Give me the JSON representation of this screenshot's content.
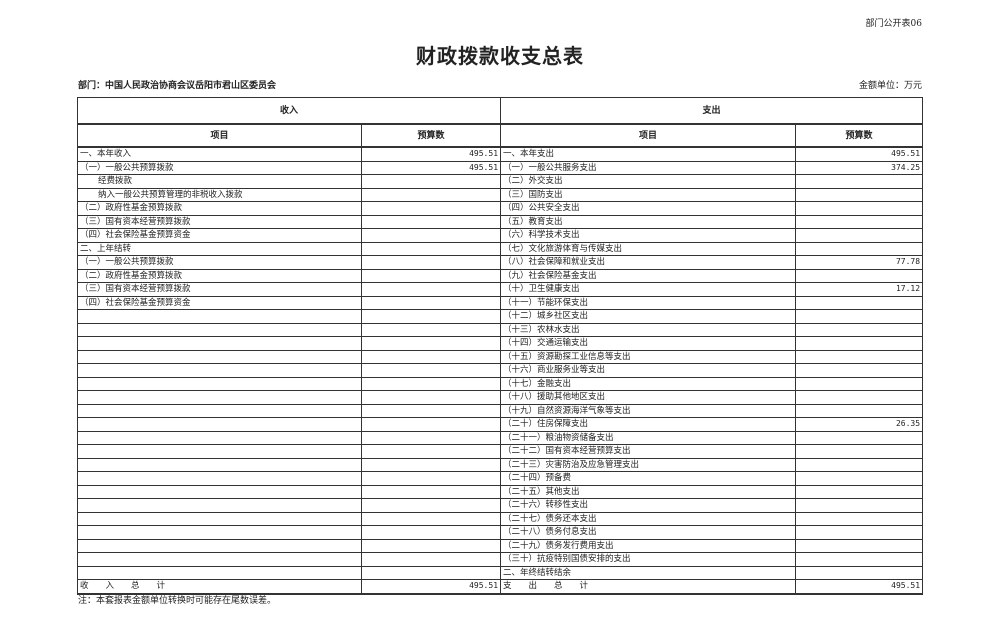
{
  "header": {
    "form_code": "部门公开表06",
    "title": "财政拨款收支总表",
    "department": "部门：中国人民政治协商会议岳阳市君山区委员会",
    "unit": "金额单位：万元"
  },
  "table": {
    "income_header": "收入",
    "expense_header": "支出",
    "col_item": "项目",
    "col_amount": "预算数",
    "income_rows": [
      {
        "label": "一、本年收入",
        "value": "495.51"
      },
      {
        "label": "（一）一般公共预算拨款",
        "value": "495.51"
      },
      {
        "label": "经费拨款",
        "value": "",
        "indent": true
      },
      {
        "label": "纳入一般公共预算管理的非税收入拨款",
        "value": "",
        "indent": true
      },
      {
        "label": "（二）政府性基金预算拨款",
        "value": ""
      },
      {
        "label": "（三）国有资本经营预算拨款",
        "value": ""
      },
      {
        "label": "（四）社会保险基金预算资金",
        "value": ""
      },
      {
        "label": "二、上年结转",
        "value": ""
      },
      {
        "label": "（一）一般公共预算拨款",
        "value": ""
      },
      {
        "label": "（二）政府性基金预算拨款",
        "value": ""
      },
      {
        "label": "（三）国有资本经营预算拨款",
        "value": ""
      },
      {
        "label": "（四）社会保险基金预算资金",
        "value": ""
      }
    ],
    "expense_rows": [
      {
        "label": "一、本年支出",
        "value": "495.51"
      },
      {
        "label": "（一）一般公共服务支出",
        "value": "374.25"
      },
      {
        "label": "（二）外交支出",
        "value": ""
      },
      {
        "label": "（三）国防支出",
        "value": ""
      },
      {
        "label": "（四）公共安全支出",
        "value": ""
      },
      {
        "label": "（五）教育支出",
        "value": ""
      },
      {
        "label": "（六）科学技术支出",
        "value": ""
      },
      {
        "label": "（七）文化旅游体育与传媒支出",
        "value": ""
      },
      {
        "label": "（八）社会保障和就业支出",
        "value": "77.78"
      },
      {
        "label": "（九）社会保险基金支出",
        "value": ""
      },
      {
        "label": "（十）卫生健康支出",
        "value": "17.12"
      },
      {
        "label": "（十一）节能环保支出",
        "value": ""
      },
      {
        "label": "（十二）城乡社区支出",
        "value": ""
      },
      {
        "label": "（十三）农林水支出",
        "value": ""
      },
      {
        "label": "（十四）交通运输支出",
        "value": ""
      },
      {
        "label": "（十五）资源勘探工业信息等支出",
        "value": ""
      },
      {
        "label": "（十六）商业服务业等支出",
        "value": ""
      },
      {
        "label": "（十七）金融支出",
        "value": ""
      },
      {
        "label": "（十八）援助其他地区支出",
        "value": ""
      },
      {
        "label": "（十九）自然资源海洋气象等支出",
        "value": ""
      },
      {
        "label": "（二十）住房保障支出",
        "value": "26.35"
      },
      {
        "label": "（二十一）粮油物资储备支出",
        "value": ""
      },
      {
        "label": "（二十二）国有资本经营预算支出",
        "value": ""
      },
      {
        "label": "（二十三）灾害防治及应急管理支出",
        "value": ""
      },
      {
        "label": "（二十四）预备费",
        "value": ""
      },
      {
        "label": "（二十五）其他支出",
        "value": ""
      },
      {
        "label": "（二十六）转移性支出",
        "value": ""
      },
      {
        "label": "（二十七）债务还本支出",
        "value": ""
      },
      {
        "label": "（二十八）债务付息支出",
        "value": ""
      },
      {
        "label": "（二十九）债务发行费用支出",
        "value": ""
      },
      {
        "label": "（三十）抗疫特别国债安排的支出",
        "value": ""
      },
      {
        "label": "二、年终结转结余",
        "value": ""
      }
    ],
    "income_total_label": "收　　入　　总　　计",
    "income_total": "495.51",
    "expense_total_label": "支　　出　　总　　计",
    "expense_total": "495.51"
  },
  "footer": {
    "note": "注：本套报表金额单位转换时可能存在尾数误差。"
  }
}
